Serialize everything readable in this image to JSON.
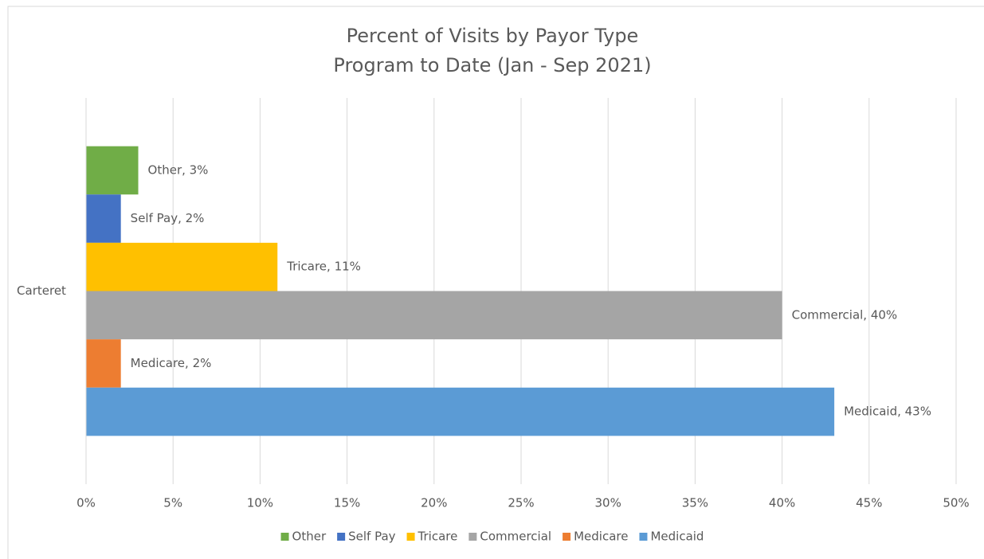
{
  "chart_data": {
    "type": "hbar",
    "title": "Percent of Visits by Payor Type",
    "subtitle": "Program to Date (Jan - Sep 2021)",
    "categories": [
      "Carteret"
    ],
    "series": [
      {
        "name": "Other",
        "color": "#70ad47",
        "values": [
          3
        ],
        "value_labels": [
          "Other, 3%"
        ]
      },
      {
        "name": "Self Pay",
        "color": "#4472c4",
        "values": [
          2
        ],
        "value_labels": [
          "Self Pay, 2%"
        ]
      },
      {
        "name": "Tricare",
        "color": "#ffc000",
        "values": [
          11
        ],
        "value_labels": [
          "Tricare, 11%"
        ]
      },
      {
        "name": "Commercial",
        "color": "#a5a5a5",
        "values": [
          40
        ],
        "value_labels": [
          "Commercial, 40%"
        ]
      },
      {
        "name": "Medicare",
        "color": "#ed7d31",
        "values": [
          2
        ],
        "value_labels": [
          "Medicare, 2%"
        ]
      },
      {
        "name": "Medicaid",
        "color": "#5b9bd5",
        "values": [
          43
        ],
        "value_labels": [
          "Medicaid, 43%"
        ]
      }
    ],
    "xlim": [
      0,
      50
    ],
    "xticks": [
      {
        "value": 0,
        "label": "0%"
      },
      {
        "value": 5,
        "label": "5%"
      },
      {
        "value": 10,
        "label": "10%"
      },
      {
        "value": 15,
        "label": "15%"
      },
      {
        "value": 20,
        "label": "20%"
      },
      {
        "value": 25,
        "label": "25%"
      },
      {
        "value": 30,
        "label": "30%"
      },
      {
        "value": 35,
        "label": "35%"
      },
      {
        "value": 40,
        "label": "40%"
      },
      {
        "value": 45,
        "label": "45%"
      },
      {
        "value": 50,
        "label": "50%"
      }
    ],
    "grid": true,
    "legend": "bottom"
  }
}
